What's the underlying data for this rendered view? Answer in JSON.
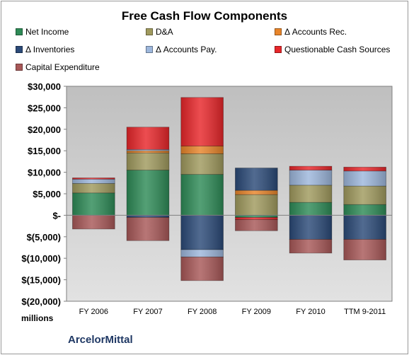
{
  "chart_data": {
    "type": "bar",
    "stacked": true,
    "title": "Free Cash Flow Components",
    "ylabel": "millions",
    "ylim": [
      -20000,
      30000
    ],
    "yticks": [
      30000,
      25000,
      20000,
      15000,
      10000,
      5000,
      0,
      -5000,
      -10000,
      -15000,
      -20000
    ],
    "ytick_labels": [
      "$30,000",
      "$25,000",
      "$20,000",
      "$15,000",
      "$10,000",
      "$5,000",
      "$-",
      "$(5,000)",
      "$(10,000)",
      "$(15,000)",
      "$(20,000)"
    ],
    "categories": [
      "FY 2006",
      "FY 2007",
      "FY 2008",
      "FY 2009",
      "FY 2010",
      "TTM 9-2011"
    ],
    "series": [
      {
        "name": "Net Income",
        "color": "#2e8b57",
        "values": [
          5200,
          10500,
          9500,
          -500,
          3000,
          2500
        ]
      },
      {
        "name": "D&A",
        "color": "#a09a5e",
        "values": [
          2200,
          4000,
          4800,
          4800,
          4000,
          4300
        ]
      },
      {
        "name": "Δ Accounts Rec.",
        "color": "#e8852a",
        "values": [
          0,
          500,
          1800,
          1000,
          0,
          0
        ]
      },
      {
        "name": "Δ Inventories",
        "color": "#2b4a78",
        "values": [
          0,
          -500,
          -8000,
          5200,
          -5600,
          -5600
        ]
      },
      {
        "name": "Δ Accounts Pay.",
        "color": "#9db7dc",
        "values": [
          1000,
          300,
          -1700,
          0,
          3500,
          3500
        ]
      },
      {
        "name": "Questionable Cash Sources",
        "color": "#e8262a",
        "values": [
          300,
          5200,
          11300,
          -500,
          900,
          900
        ]
      },
      {
        "name": "Capital Expenditure",
        "color": "#a85858",
        "values": [
          -3200,
          -5400,
          -5500,
          -2600,
          -3200,
          -4800
        ]
      }
    ],
    "legend_position": "top",
    "grid": false
  },
  "footer_label": "ArcelorMittal"
}
